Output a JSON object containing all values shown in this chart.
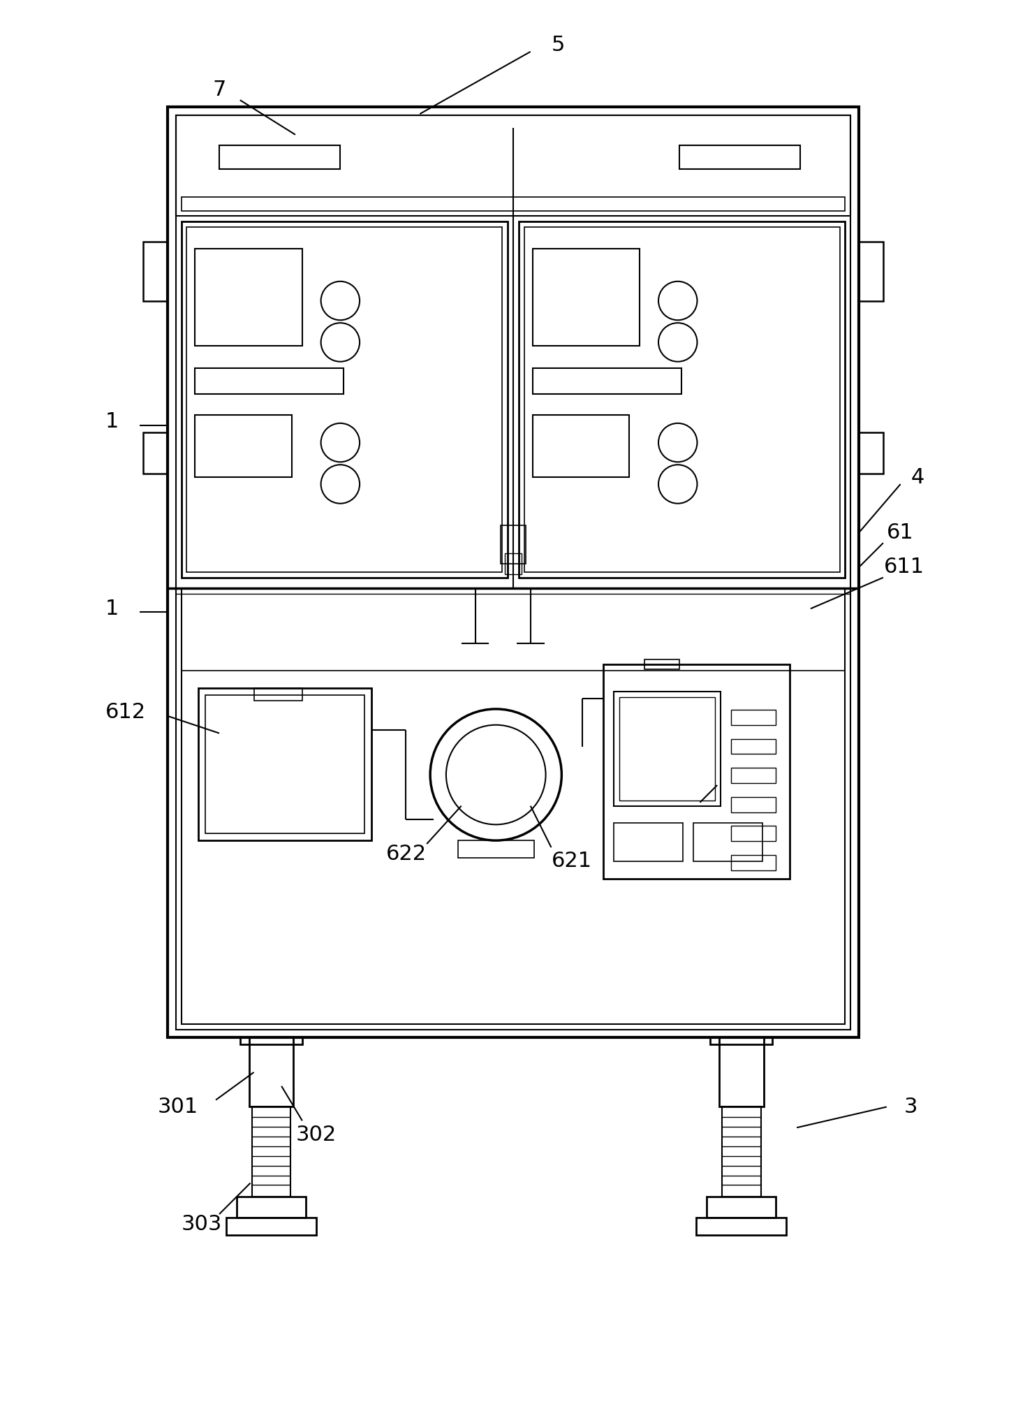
{
  "bg_color": "#ffffff",
  "line_color": "#000000",
  "fig_width": 14.68,
  "fig_height": 20.17
}
